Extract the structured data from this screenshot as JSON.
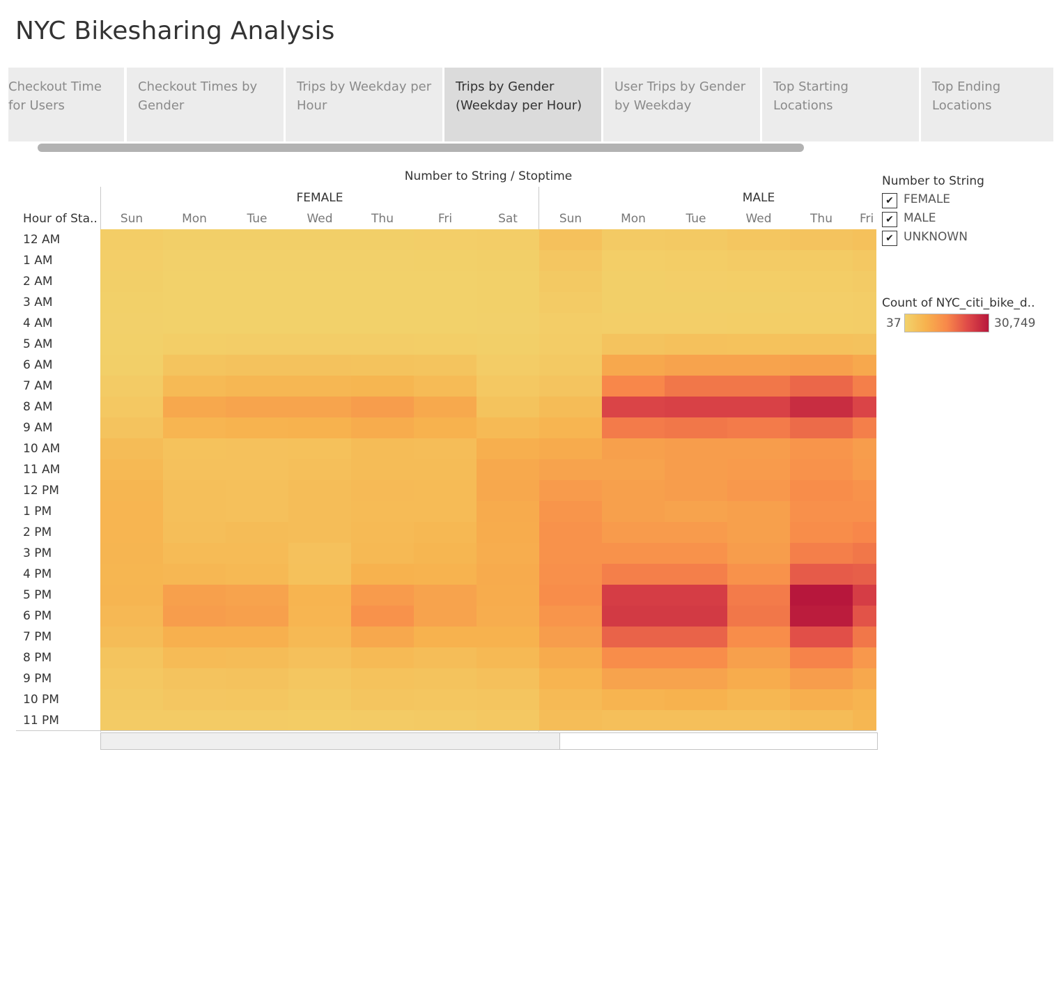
{
  "dashboard": {
    "title": "NYC Bikesharing Analysis",
    "tabs": [
      {
        "label": "Checkout Time for Users",
        "active": false
      },
      {
        "label": "Checkout Times by Gender",
        "active": false
      },
      {
        "label": "Trips by Weekday per Hour",
        "active": false
      },
      {
        "label": "Trips by Gender (Weekday per Hour)",
        "active": true
      },
      {
        "label": "User Trips by Gender by Weekday",
        "active": false
      },
      {
        "label": "Top Starting Locations",
        "active": false
      },
      {
        "label": "Top Ending Locations",
        "active": false
      }
    ]
  },
  "legend": {
    "title": "Number to String",
    "items": [
      {
        "label": "FEMALE",
        "checked": true
      },
      {
        "label": "MALE",
        "checked": true
      },
      {
        "label": "UNKNOWN",
        "checked": true
      }
    ],
    "check_glyph": "✔",
    "color_title": "Count of NYC_citi_bike_d..",
    "min_label": "37",
    "max_label": "30,749",
    "colors": [
      "#f2d26b",
      "#f7b24e",
      "#f8884a",
      "#df4a48",
      "#b7173c"
    ]
  },
  "chart_data": {
    "type": "heatmap",
    "title": "Number to String / Stoptime",
    "row_header": "Hour of Sta..",
    "rows": [
      "12 AM",
      "1 AM",
      "2 AM",
      "3 AM",
      "4 AM",
      "5 AM",
      "6 AM",
      "7 AM",
      "8 AM",
      "9 AM",
      "10 AM",
      "11 AM",
      "12 PM",
      "1 PM",
      "2 PM",
      "3 PM",
      "4 PM",
      "5 PM",
      "6 PM",
      "7 PM",
      "8 PM",
      "9 PM",
      "10 PM",
      "11 PM"
    ],
    "columns": [
      {
        "group": "FEMALE",
        "day": "Sun"
      },
      {
        "group": "FEMALE",
        "day": "Mon"
      },
      {
        "group": "FEMALE",
        "day": "Tue"
      },
      {
        "group": "FEMALE",
        "day": "Wed"
      },
      {
        "group": "FEMALE",
        "day": "Thu"
      },
      {
        "group": "FEMALE",
        "day": "Fri"
      },
      {
        "group": "FEMALE",
        "day": "Sat"
      },
      {
        "group": "MALE",
        "day": "Sun"
      },
      {
        "group": "MALE",
        "day": "Mon"
      },
      {
        "group": "MALE",
        "day": "Tue"
      },
      {
        "group": "MALE",
        "day": "Wed"
      },
      {
        "group": "MALE",
        "day": "Thu"
      },
      {
        "group": "MALE",
        "day": "Fri"
      }
    ],
    "groups": [
      "FEMALE",
      "MALE"
    ],
    "range": [
      37,
      30749
    ],
    "values": [
      [
        1300,
        800,
        700,
        800,
        800,
        900,
        1200,
        4000,
        2000,
        2200,
        3000,
        3600,
        4200
      ],
      [
        900,
        400,
        400,
        400,
        400,
        500,
        800,
        2800,
        1100,
        1300,
        1600,
        1800,
        2500
      ],
      [
        700,
        300,
        300,
        300,
        300,
        300,
        600,
        2200,
        800,
        900,
        1100,
        1300,
        1700
      ],
      [
        500,
        200,
        200,
        200,
        200,
        300,
        500,
        1600,
        700,
        700,
        800,
        900,
        1200
      ],
      [
        400,
        300,
        300,
        300,
        300,
        300,
        400,
        1200,
        900,
        900,
        1000,
        1100,
        1200
      ],
      [
        500,
        1100,
        1200,
        1200,
        1200,
        1100,
        700,
        1400,
        3600,
        4000,
        3900,
        4100,
        3800
      ],
      [
        800,
        3500,
        3800,
        3800,
        3700,
        3400,
        1400,
        2200,
        9500,
        10500,
        10500,
        11000,
        9500
      ],
      [
        1600,
        5800,
        6500,
        6400,
        6800,
        5600,
        2400,
        3300,
        15500,
        17500,
        17500,
        19500,
        16500
      ],
      [
        2400,
        9500,
        10300,
        10300,
        11500,
        9300,
        3700,
        5200,
        24000,
        24500,
        24500,
        27500,
        24000
      ],
      [
        3600,
        7000,
        7500,
        7600,
        8800,
        7800,
        5800,
        7000,
        17000,
        17500,
        17000,
        19000,
        16500
      ],
      [
        5200,
        3900,
        4100,
        4200,
        5200,
        5000,
        8200,
        9000,
        11000,
        11500,
        11500,
        13000,
        11500
      ],
      [
        6000,
        4000,
        4100,
        4500,
        5300,
        5200,
        9300,
        10500,
        10500,
        11500,
        12000,
        13500,
        12000
      ],
      [
        6800,
        4500,
        4400,
        5000,
        5700,
        5500,
        9500,
        12000,
        11000,
        11500,
        12500,
        14500,
        13500
      ],
      [
        7000,
        4500,
        4400,
        5000,
        5600,
        5600,
        9000,
        13000,
        11000,
        10500,
        11000,
        14000,
        14000
      ],
      [
        7000,
        4800,
        5200,
        5100,
        5800,
        6300,
        8800,
        13500,
        12000,
        12000,
        11000,
        14500,
        15500
      ],
      [
        6900,
        5600,
        5500,
        4100,
        6000,
        6800,
        8600,
        13500,
        13500,
        13500,
        11500,
        16500,
        17500
      ],
      [
        6800,
        6400,
        6100,
        4200,
        7800,
        7400,
        9000,
        14000,
        16500,
        16500,
        13500,
        21000,
        20500
      ],
      [
        6900,
        11000,
        10500,
        7200,
        12000,
        10500,
        8800,
        14500,
        25000,
        25000,
        17000,
        30749,
        25000
      ],
      [
        6200,
        11500,
        11000,
        7000,
        13500,
        10500,
        8600,
        13000,
        25500,
        25500,
        17500,
        30000,
        22000
      ],
      [
        5200,
        8000,
        8000,
        6000,
        9500,
        7600,
        7700,
        11500,
        20000,
        20000,
        14500,
        22500,
        17500
      ],
      [
        3400,
        5600,
        5300,
        4300,
        5800,
        5100,
        6000,
        9000,
        14500,
        14500,
        11000,
        16000,
        12500
      ],
      [
        2600,
        3600,
        3800,
        3000,
        3900,
        3700,
        4300,
        7300,
        10500,
        10500,
        8800,
        11500,
        9500
      ],
      [
        2100,
        2800,
        2900,
        2300,
        3100,
        2900,
        3200,
        5800,
        7200,
        7700,
        6600,
        8200,
        7200
      ],
      [
        1700,
        1600,
        1700,
        1500,
        1700,
        1900,
        2500,
        5100,
        4600,
        4600,
        4600,
        5200,
        6600
      ]
    ]
  }
}
